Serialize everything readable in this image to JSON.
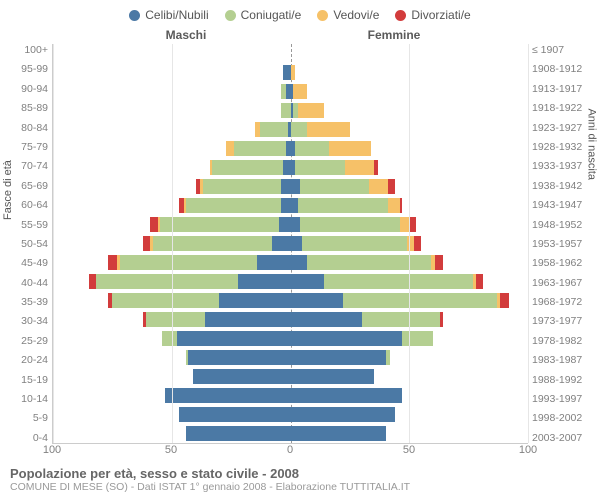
{
  "legend": [
    {
      "label": "Celibi/Nubili",
      "color": "#4b79a5"
    },
    {
      "label": "Coniugati/e",
      "color": "#b4cf91"
    },
    {
      "label": "Vedovi/e",
      "color": "#f6c168"
    },
    {
      "label": "Divorziati/e",
      "color": "#d23c3c"
    }
  ],
  "headers": {
    "male": "Maschi",
    "female": "Femmine"
  },
  "axis_titles": {
    "left": "Fasce di età",
    "right": "Anni di nascita"
  },
  "x_axis": {
    "min": -100,
    "max": 100,
    "ticks": [
      100,
      50,
      0,
      50,
      100
    ]
  },
  "colors": {
    "single": "#4b79a5",
    "married": "#b4cf91",
    "widowed": "#f6c168",
    "divorced": "#d23c3c",
    "grid": "#e6e6e6",
    "center": "#999999",
    "text": "#808080",
    "bg": "#ffffff"
  },
  "style": {
    "bar_height_pct": 78,
    "font_label": 10.5,
    "font_legend": 12,
    "font_header": 12,
    "font_title": 13,
    "font_sub": 10.5
  },
  "rows": [
    {
      "age": "100+",
      "birth": "≤ 1907",
      "m": [
        0,
        0,
        0,
        0
      ],
      "f": [
        0,
        0,
        0,
        0
      ]
    },
    {
      "age": "95-99",
      "birth": "1908-1912",
      "m": [
        3,
        0,
        0,
        0
      ],
      "f": [
        0,
        0,
        2,
        0
      ]
    },
    {
      "age": "90-94",
      "birth": "1913-1917",
      "m": [
        2,
        2,
        0,
        0
      ],
      "f": [
        1,
        0,
        6,
        0
      ]
    },
    {
      "age": "85-89",
      "birth": "1918-1922",
      "m": [
        0,
        4,
        0,
        0
      ],
      "f": [
        1,
        2,
        11,
        0
      ]
    },
    {
      "age": "80-84",
      "birth": "1923-1927",
      "m": [
        1,
        12,
        2,
        0
      ],
      "f": [
        0,
        7,
        18,
        0
      ]
    },
    {
      "age": "75-79",
      "birth": "1928-1932",
      "m": [
        2,
        22,
        3,
        0
      ],
      "f": [
        2,
        14,
        18,
        0
      ]
    },
    {
      "age": "70-74",
      "birth": "1933-1937",
      "m": [
        3,
        30,
        1,
        0
      ],
      "f": [
        2,
        21,
        12,
        2
      ]
    },
    {
      "age": "65-69",
      "birth": "1938-1942",
      "m": [
        4,
        33,
        1,
        2
      ],
      "f": [
        4,
        29,
        8,
        3
      ]
    },
    {
      "age": "60-64",
      "birth": "1943-1947",
      "m": [
        4,
        40,
        1,
        2
      ],
      "f": [
        3,
        38,
        5,
        1
      ]
    },
    {
      "age": "55-59",
      "birth": "1948-1952",
      "m": [
        5,
        50,
        1,
        3
      ],
      "f": [
        4,
        42,
        4,
        3
      ]
    },
    {
      "age": "50-54",
      "birth": "1953-1957",
      "m": [
        8,
        50,
        1,
        3
      ],
      "f": [
        5,
        44,
        3,
        3
      ]
    },
    {
      "age": "45-49",
      "birth": "1958-1962",
      "m": [
        14,
        58,
        1,
        4
      ],
      "f": [
        7,
        52,
        2,
        3
      ]
    },
    {
      "age": "40-44",
      "birth": "1963-1967",
      "m": [
        22,
        60,
        0,
        3
      ],
      "f": [
        14,
        63,
        1,
        3
      ]
    },
    {
      "age": "35-39",
      "birth": "1968-1972",
      "m": [
        30,
        45,
        0,
        2
      ],
      "f": [
        22,
        65,
        1,
        4
      ]
    },
    {
      "age": "30-34",
      "birth": "1973-1977",
      "m": [
        36,
        25,
        0,
        1
      ],
      "f": [
        30,
        33,
        0,
        1
      ]
    },
    {
      "age": "25-29",
      "birth": "1978-1982",
      "m": [
        48,
        6,
        0,
        0
      ],
      "f": [
        47,
        13,
        0,
        0
      ]
    },
    {
      "age": "20-24",
      "birth": "1983-1987",
      "m": [
        43,
        1,
        0,
        0
      ],
      "f": [
        40,
        2,
        0,
        0
      ]
    },
    {
      "age": "15-19",
      "birth": "1988-1992",
      "m": [
        41,
        0,
        0,
        0
      ],
      "f": [
        35,
        0,
        0,
        0
      ]
    },
    {
      "age": "10-14",
      "birth": "1993-1997",
      "m": [
        53,
        0,
        0,
        0
      ],
      "f": [
        47,
        0,
        0,
        0
      ]
    },
    {
      "age": "5-9",
      "birth": "1998-2002",
      "m": [
        47,
        0,
        0,
        0
      ],
      "f": [
        44,
        0,
        0,
        0
      ]
    },
    {
      "age": "0-4",
      "birth": "2003-2007",
      "m": [
        44,
        0,
        0,
        0
      ],
      "f": [
        40,
        0,
        0,
        0
      ]
    }
  ],
  "footer": {
    "title": "Popolazione per età, sesso e stato civile - 2008",
    "sub": "COMUNE DI MESE (SO) - Dati ISTAT 1° gennaio 2008 - Elaborazione TUTTITALIA.IT"
  }
}
